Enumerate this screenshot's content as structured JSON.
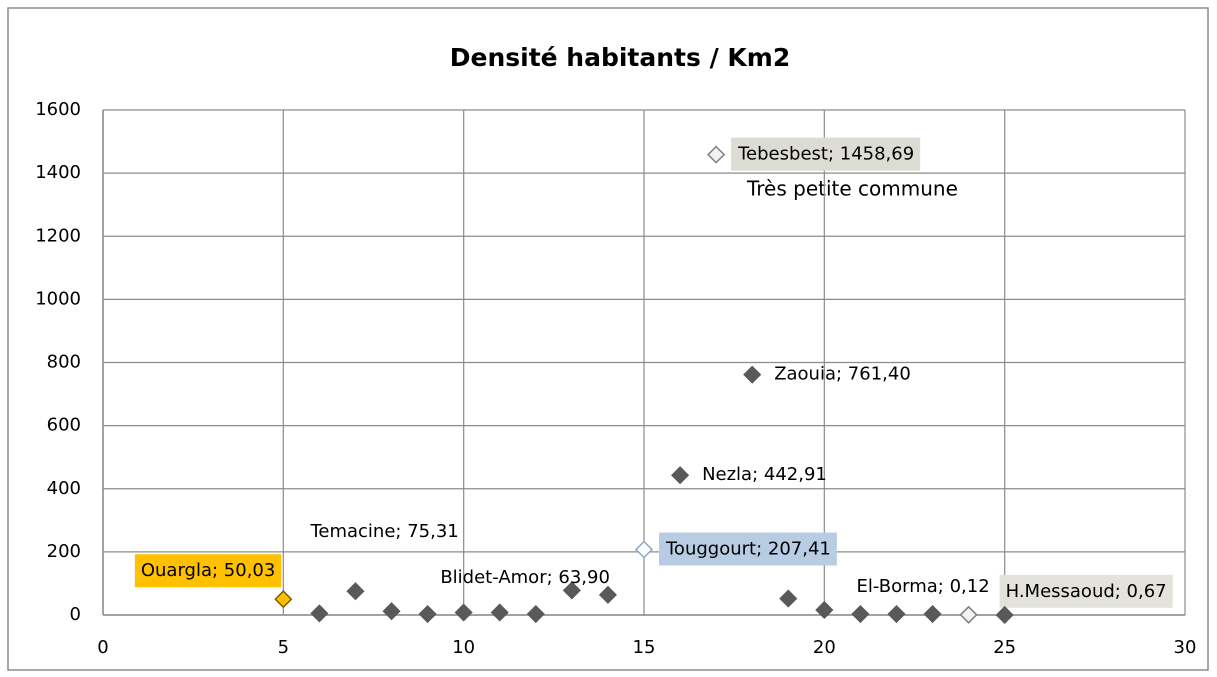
{
  "chart_data": {
    "type": "scatter",
    "title": "Densité habitants / Km2",
    "x": [
      5,
      6,
      7,
      8,
      9,
      10,
      11,
      12,
      13,
      14,
      15,
      16,
      17,
      18,
      19,
      20,
      21,
      22,
      23,
      24,
      25
    ],
    "y": [
      50.03,
      5,
      75.31,
      12,
      3,
      8,
      8,
      3,
      78,
      63.9,
      207.41,
      442.91,
      1458.69,
      761.4,
      52,
      16,
      3,
      3,
      3,
      0.67,
      0.12
    ],
    "colors": [
      "#ffc000",
      "#595959",
      "#595959",
      "#595959",
      "#595959",
      "#595959",
      "#595959",
      "#595959",
      "#595959",
      "#595959",
      "#ffffff",
      "#595959",
      "#f2f2f2",
      "#595959",
      "#595959",
      "#595959",
      "#595959",
      "#595959",
      "#595959",
      "#f2f2f2",
      "#595959"
    ],
    "edge_colors": [
      "#7f6000",
      "#595959",
      "#595959",
      "#595959",
      "#595959",
      "#595959",
      "#595959",
      "#595959",
      "#595959",
      "#595959",
      "#8eaacc",
      "#595959",
      "#7f7f7f",
      "#595959",
      "#595959",
      "#595959",
      "#595959",
      "#595959",
      "#595959",
      "#7f7f7f",
      "#595959"
    ],
    "value_labels": [
      "Ouargla; 50,03",
      null,
      "Temacine; 75,31",
      null,
      null,
      null,
      null,
      null,
      null,
      "Blidet-Amor; 63,90",
      "Touggourt; 207,41",
      "Nezla; 442,91",
      "Tebesbest; 1458,69",
      "Zaouia; 761,40",
      null,
      null,
      null,
      null,
      null,
      "H.Messaoud; 0,67",
      "El-Borma; 0,12"
    ],
    "label_colors": [
      "#ffc000",
      null,
      null,
      null,
      null,
      null,
      null,
      null,
      null,
      null,
      "#b8cce4",
      null,
      "#dddcd4",
      null,
      null,
      null,
      null,
      null,
      null,
      "#e3e3dc",
      null
    ],
    "annotation": "Très petite commune",
    "xlim": [
      0,
      30
    ],
    "xticks": [
      0,
      5,
      10,
      15,
      20,
      25,
      30
    ],
    "ylim": [
      0,
      1600
    ],
    "yticks": [
      0,
      200,
      400,
      600,
      800,
      1000,
      1200,
      1400,
      1600
    ],
    "grid": true
  }
}
